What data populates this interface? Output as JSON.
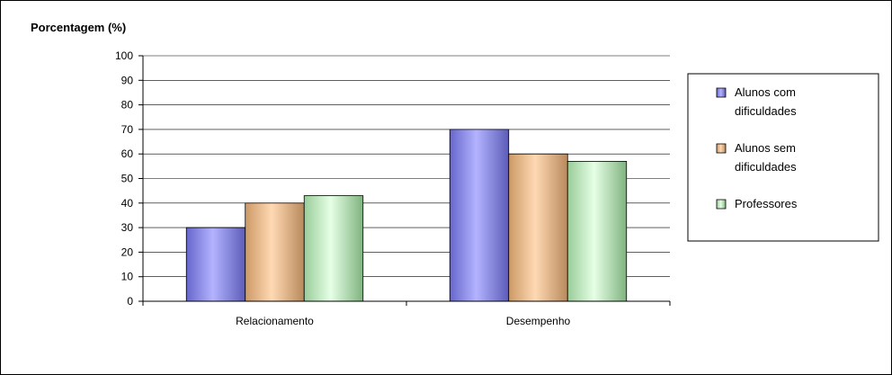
{
  "chart_data": {
    "type": "bar",
    "title": "",
    "ylabel": "Porcentagem (%)",
    "xlabel": "",
    "ylim": [
      0,
      100
    ],
    "yticks": [
      0,
      10,
      20,
      30,
      40,
      50,
      60,
      70,
      80,
      90,
      100
    ],
    "categories": [
      "Relacionamento",
      "Desempenho"
    ],
    "series": [
      {
        "name": "Alunos com dificuldades",
        "values": [
          30,
          70
        ],
        "color": "#9999ff"
      },
      {
        "name": "Alunos sem dificuldades",
        "values": [
          40,
          60
        ],
        "color": "#ffcc99"
      },
      {
        "name": "Professores",
        "values": [
          43,
          57
        ],
        "color": "#ccffcc"
      }
    ],
    "legend": {
      "position": "right",
      "entries": [
        [
          "Alunos com",
          "dificuldades"
        ],
        [
          "Alunos sem",
          "dificuldades"
        ],
        [
          "Professores"
        ]
      ]
    },
    "grid": true
  }
}
